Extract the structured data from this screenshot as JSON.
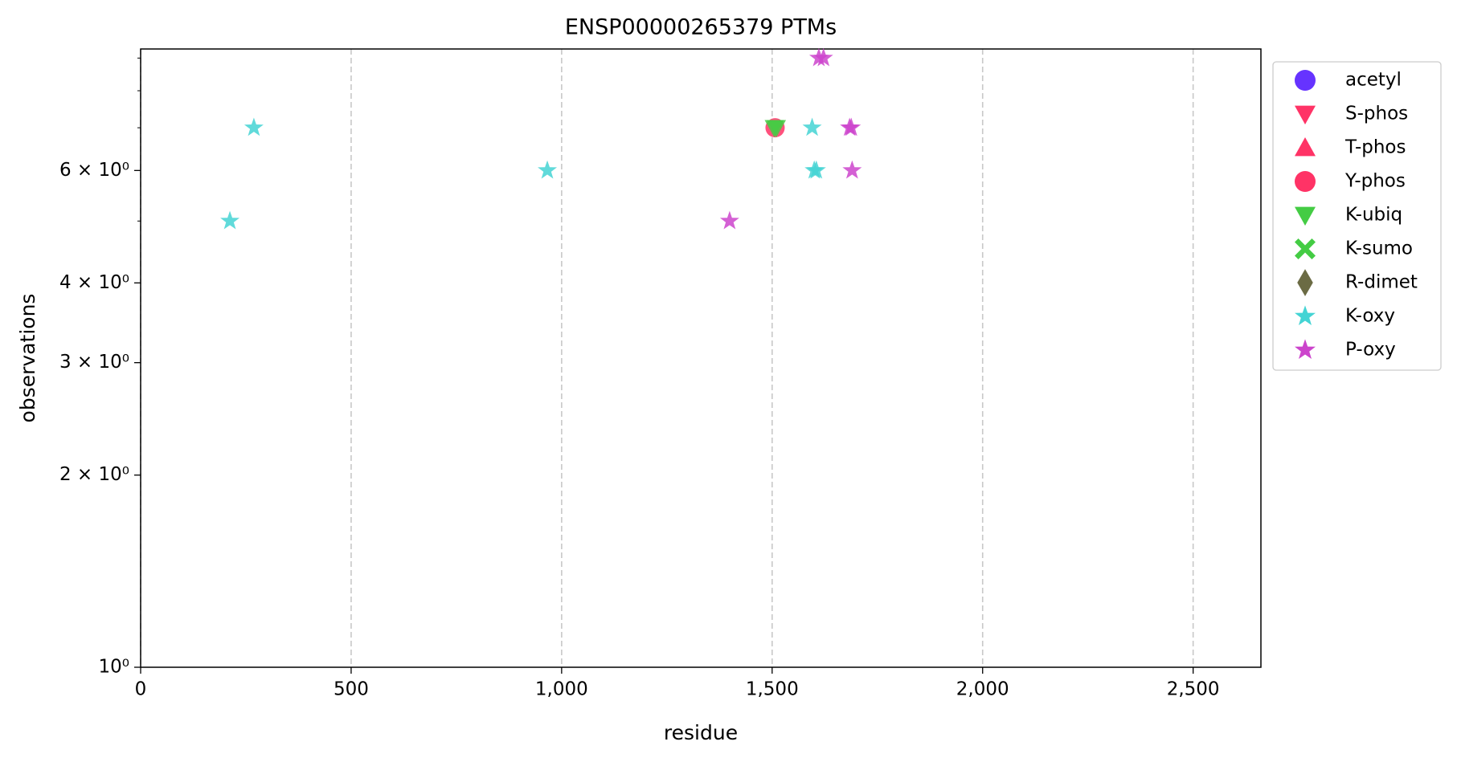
{
  "chart_data": {
    "type": "scatter",
    "title": "ENSP00000265379 PTMs",
    "x_label": "residue",
    "y_label": "observations",
    "log_y": true,
    "grid": "x",
    "legend": "outside upper right",
    "xlim": [
      0,
      2661
    ],
    "ylim": [
      1,
      9.3
    ],
    "xticks": [
      0,
      500,
      {
        "value": 1000,
        "label": "1,000"
      },
      {
        "value": 1500,
        "label": "1,500"
      },
      {
        "value": 2000,
        "label": "2,000"
      },
      {
        "value": 2500,
        "label": "2,500"
      }
    ],
    "yticks": [
      {
        "value": 1,
        "label": "10⁰"
      },
      {
        "value": 2,
        "label": "2 × 10⁰"
      },
      {
        "value": 3,
        "label": "3 × 10⁰"
      },
      {
        "value": 4,
        "label": "4 × 10⁰"
      },
      {
        "value": 6,
        "label": "6 × 10⁰"
      }
    ],
    "yminorticks": [
      5,
      7,
      8,
      9
    ],
    "series": [
      {
        "name": "acetyl",
        "color": "#6633ff",
        "marker": "circle",
        "x": [],
        "values": []
      },
      {
        "name": "S-phos",
        "color": "#ff3366",
        "marker": "triangle-down",
        "x": [],
        "values": []
      },
      {
        "name": "T-phos",
        "color": "#ff3366",
        "marker": "triangle-up",
        "x": [],
        "values": []
      },
      {
        "name": "Y-phos",
        "color": "#ff3366",
        "marker": "circle",
        "x": [
          1507
        ],
        "values": [
          7
        ]
      },
      {
        "name": "K-ubiq",
        "color": "#44cc44",
        "marker": "triangle-down",
        "x": [
          1505,
          1510
        ],
        "values": [
          7,
          7
        ]
      },
      {
        "name": "K-sumo",
        "color": "#44cc44",
        "marker": "x",
        "x": [],
        "values": []
      },
      {
        "name": "R-dimet",
        "color": "#6b6b44",
        "marker": "diamond",
        "x": [],
        "values": []
      },
      {
        "name": "K-oxy",
        "color": "#44d4d4",
        "marker": "star",
        "x": [
          212,
          269,
          966,
          1595,
          1600,
          1605
        ],
        "values": [
          5,
          7,
          6,
          7,
          6,
          6
        ]
      },
      {
        "name": "P-oxy",
        "color": "#cc44cc",
        "marker": "star",
        "x": [
          1399,
          1611,
          1622,
          1684,
          1688,
          1690
        ],
        "values": [
          5,
          9,
          9,
          7,
          7,
          6
        ]
      }
    ]
  }
}
